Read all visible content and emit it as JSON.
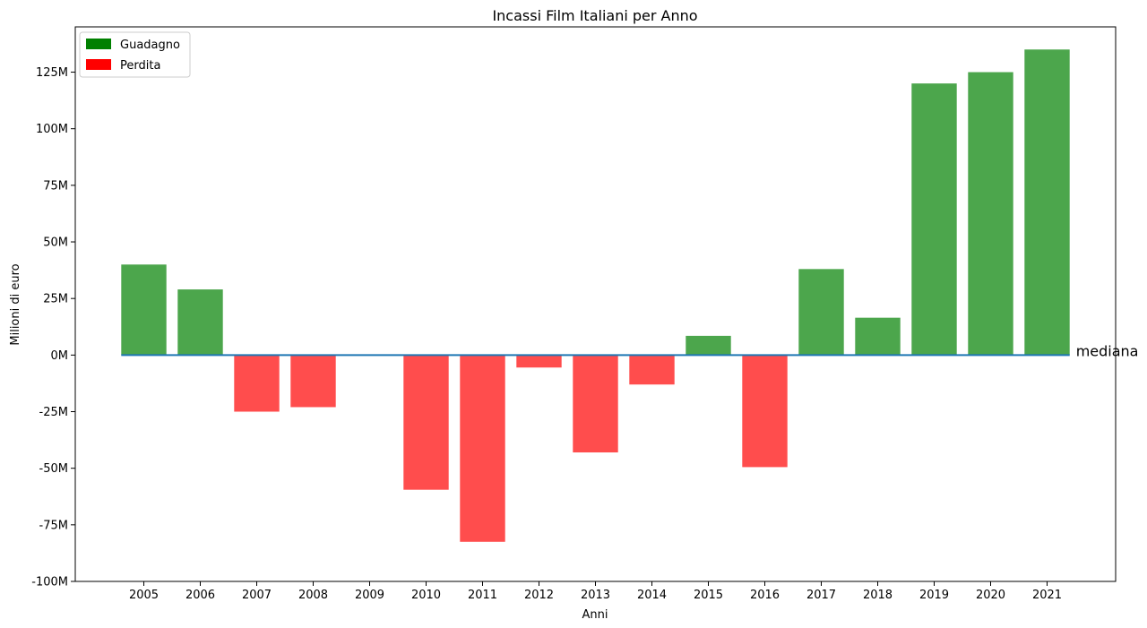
{
  "chart_data": {
    "type": "bar",
    "title": "Incassi Film Italiani per Anno",
    "xlabel": "Anni",
    "ylabel": "Milioni di euro",
    "categories": [
      "2005",
      "2006",
      "2007",
      "2008",
      "2009",
      "2010",
      "2011",
      "2012",
      "2013",
      "2014",
      "2015",
      "2016",
      "2017",
      "2018",
      "2019",
      "2020",
      "2021"
    ],
    "values": [
      40,
      29,
      -25,
      -23,
      0,
      -59.5,
      -82.5,
      -5.5,
      -43,
      -13,
      8.5,
      -49.5,
      38,
      16.5,
      120,
      125,
      135
    ],
    "ylim": [
      -100,
      145
    ],
    "yticks": [
      -100,
      -75,
      -50,
      -25,
      0,
      25,
      50,
      75,
      100,
      125
    ],
    "ytick_labels": [
      "-100M",
      "-75M",
      "-50M",
      "-25M",
      "0M",
      "25M",
      "50M",
      "75M",
      "100M",
      "125M"
    ],
    "reference_line": {
      "value": 0,
      "label": "mediana",
      "color": "#1f77b4"
    },
    "colors": {
      "gain": "#4ca64c",
      "loss": "#ff4d4d",
      "gain_legend": "#008000",
      "loss_legend": "#ff0000"
    },
    "legend": {
      "position": "top-left",
      "entries": [
        {
          "label": "Guadagno",
          "color": "#008000"
        },
        {
          "label": "Perdita",
          "color": "#ff0000"
        }
      ]
    },
    "grid": false
  }
}
